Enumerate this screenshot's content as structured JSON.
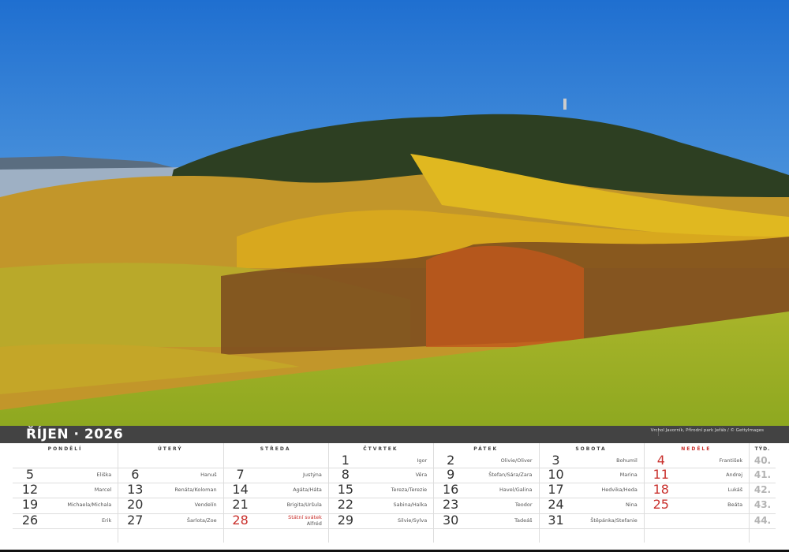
{
  "calendar": {
    "title": "ŘÍJEN · 2026",
    "credit": "Vrchol Javorník, Přírodní park Jeřáb / © GettyImages",
    "day_headers": [
      "PONDĚLÍ",
      "ÚTERÝ",
      "STŘEDA",
      "ČTVRTEK",
      "PÁTEK",
      "SOBOTA",
      "NEDĚLE"
    ],
    "week_header": "TÝD.",
    "accent_color": "#c9302c",
    "weeks": [
      {
        "week": "40.",
        "days": [
          null,
          null,
          null,
          {
            "num": "1",
            "name": "Igor"
          },
          {
            "num": "2",
            "name": "Olivie/Oliver"
          },
          {
            "num": "3",
            "name": "Bohumil"
          },
          {
            "num": "4",
            "name": "František",
            "red": true
          }
        ]
      },
      {
        "week": "41.",
        "days": [
          {
            "num": "5",
            "name": "Eliška"
          },
          {
            "num": "6",
            "name": "Hanuš"
          },
          {
            "num": "7",
            "name": "Justýna"
          },
          {
            "num": "8",
            "name": "Věra"
          },
          {
            "num": "9",
            "name": "Štefan/Sára/Zara"
          },
          {
            "num": "10",
            "name": "Marina"
          },
          {
            "num": "11",
            "name": "Andrej",
            "red": true
          }
        ]
      },
      {
        "week": "42.",
        "days": [
          {
            "num": "12",
            "name": "Marcel"
          },
          {
            "num": "13",
            "name": "Renáta/Koloman"
          },
          {
            "num": "14",
            "name": "Agáta/Háta"
          },
          {
            "num": "15",
            "name": "Tereza/Terezie"
          },
          {
            "num": "16",
            "name": "Havel/Galina"
          },
          {
            "num": "17",
            "name": "Hedvika/Heda"
          },
          {
            "num": "18",
            "name": "Lukáš",
            "red": true
          }
        ]
      },
      {
        "week": "43.",
        "days": [
          {
            "num": "19",
            "name": "Michaela/Michala"
          },
          {
            "num": "20",
            "name": "Vendelín"
          },
          {
            "num": "21",
            "name": "Brigita/Uršula"
          },
          {
            "num": "22",
            "name": "Sabina/Halka"
          },
          {
            "num": "23",
            "name": "Teodor"
          },
          {
            "num": "24",
            "name": "Nina"
          },
          {
            "num": "25",
            "name": "Beáta",
            "red": true
          }
        ]
      },
      {
        "week": "44.",
        "days": [
          {
            "num": "26",
            "name": "Erik"
          },
          {
            "num": "27",
            "name": "Šarlota/Zoe"
          },
          {
            "num": "28",
            "name": "Alfréd",
            "holiday": "Státní svátek",
            "red": true
          },
          {
            "num": "29",
            "name": "Silvie/Sylva"
          },
          {
            "num": "30",
            "name": "Tadeáš"
          },
          {
            "num": "31",
            "name": "Štěpánka/Stefanie"
          },
          null
        ]
      }
    ]
  }
}
